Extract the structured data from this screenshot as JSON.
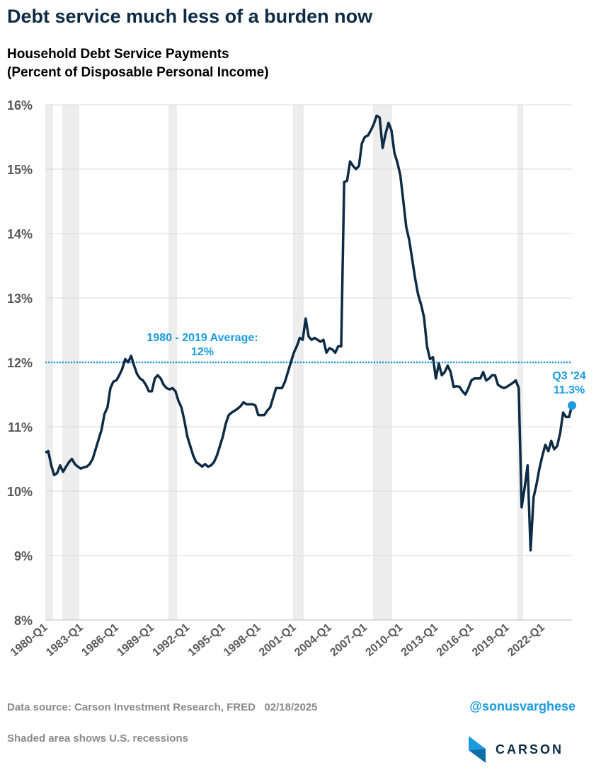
{
  "chart_data": {
    "type": "line",
    "headline": "Debt service much less of a burden now",
    "title": "Household Debt Service Payments",
    "subtitle": "(Percent of Disposable Personal Income)",
    "categories": [
      "1980-Q1",
      null,
      null,
      null,
      null,
      null,
      null,
      null,
      null,
      null,
      null,
      null,
      "1983-Q1",
      null,
      null,
      null,
      null,
      null,
      null,
      null,
      null,
      null,
      null,
      null,
      "1986-Q1",
      null,
      null,
      null,
      null,
      null,
      null,
      null,
      null,
      null,
      null,
      null,
      "1989-Q1",
      null,
      null,
      null,
      null,
      null,
      null,
      null,
      null,
      null,
      null,
      null,
      "1992-Q1",
      null,
      null,
      null,
      null,
      null,
      null,
      null,
      null,
      null,
      null,
      null,
      "1995-Q1",
      null,
      null,
      null,
      null,
      null,
      null,
      null,
      null,
      null,
      null,
      null,
      "1998-Q1",
      null,
      null,
      null,
      null,
      null,
      null,
      null,
      null,
      null,
      null,
      null,
      "2001-Q1",
      null,
      null,
      null,
      null,
      null,
      null,
      null,
      null,
      null,
      null,
      null,
      "2004-Q1",
      null,
      null,
      null,
      null,
      null,
      null,
      null,
      null,
      null,
      null,
      null,
      "2007-Q1",
      null,
      null,
      null,
      null,
      null,
      null,
      null,
      null,
      null,
      null,
      null,
      "2010-Q1",
      null,
      null,
      null,
      null,
      null,
      null,
      null,
      null,
      null,
      null,
      null,
      "2013-Q1",
      null,
      null,
      null,
      null,
      null,
      null,
      null,
      null,
      null,
      null,
      null,
      "2016-Q1",
      null,
      null,
      null,
      null,
      null,
      null,
      null,
      null,
      null,
      null,
      null,
      "2019-Q1",
      null,
      null,
      null,
      null,
      null,
      null,
      null,
      null,
      null,
      null,
      null,
      "2022-Q1",
      null,
      null,
      null,
      null,
      null,
      null,
      null,
      null,
      null,
      null
    ],
    "series": [
      {
        "name": "Household Debt Service Payments",
        "color": "#0d2b45",
        "values": [
          10.6,
          10.62,
          10.4,
          10.25,
          10.28,
          10.4,
          10.3,
          10.38,
          10.45,
          10.5,
          10.42,
          10.38,
          10.35,
          10.37,
          10.38,
          10.42,
          10.5,
          10.65,
          10.8,
          10.95,
          11.2,
          11.3,
          11.6,
          11.7,
          11.72,
          11.8,
          11.9,
          12.05,
          12.0,
          12.1,
          11.95,
          11.82,
          11.75,
          11.72,
          11.65,
          11.55,
          11.55,
          11.75,
          11.8,
          11.75,
          11.65,
          11.6,
          11.58,
          11.6,
          11.55,
          11.4,
          11.3,
          11.1,
          10.85,
          10.7,
          10.55,
          10.45,
          10.42,
          10.38,
          10.42,
          10.38,
          10.4,
          10.45,
          10.55,
          10.7,
          10.85,
          11.05,
          11.18,
          11.22,
          11.25,
          11.28,
          11.32,
          11.38,
          11.35,
          11.35,
          11.35,
          11.33,
          11.18,
          11.18,
          11.18,
          11.25,
          11.3,
          11.45,
          11.6,
          11.6,
          11.6,
          11.7,
          11.85,
          12.0,
          12.15,
          12.25,
          12.38,
          12.35,
          12.68,
          12.4,
          12.35,
          12.38,
          12.35,
          12.32,
          12.35,
          12.15,
          12.22,
          12.2,
          12.15,
          12.25,
          12.25,
          14.8,
          14.82,
          15.12,
          15.05,
          15.0,
          15.05,
          15.4,
          15.5,
          15.52,
          15.6,
          15.7,
          15.83,
          15.8,
          15.33,
          15.55,
          15.72,
          15.6,
          15.25,
          15.1,
          14.9,
          14.5,
          14.1,
          13.9,
          13.6,
          13.3,
          13.05,
          12.9,
          12.7,
          12.25,
          12.05,
          12.08,
          11.75,
          11.98,
          11.8,
          11.85,
          11.95,
          11.85,
          11.62,
          11.63,
          11.62,
          11.55,
          11.5,
          11.6,
          11.72,
          11.75,
          11.75,
          11.75,
          11.85,
          11.72,
          11.75,
          11.8,
          11.8,
          11.65,
          11.62,
          11.6,
          11.62,
          11.65,
          11.68,
          11.72,
          11.6,
          9.75,
          10.05,
          10.4,
          9.08,
          9.9,
          10.1,
          10.35,
          10.55,
          10.72,
          10.62,
          10.78,
          10.65,
          10.7,
          10.9,
          11.22,
          11.15,
          11.15,
          11.33
        ]
      }
    ],
    "ylim": [
      8,
      16
    ],
    "yticks": [
      {
        "value": 8,
        "label": "8%"
      },
      {
        "value": 9,
        "label": "9%"
      },
      {
        "value": 10,
        "label": "10%"
      },
      {
        "value": 11,
        "label": "11%"
      },
      {
        "value": 12,
        "label": "12%"
      },
      {
        "value": 13,
        "label": "13%"
      },
      {
        "value": 14,
        "label": "14%"
      },
      {
        "value": 15,
        "label": "15%"
      },
      {
        "value": 16,
        "label": "16%"
      }
    ],
    "grid": true,
    "reference_line": {
      "value": 12,
      "color": "#1a9be0",
      "label": [
        "1980 - 2019 Average:",
        "12%"
      ]
    },
    "last_point_label": [
      "Q3 '24",
      "11.3%"
    ],
    "source": "Data source: Carson Investment Research, FRED   02/18/2025",
    "handle": "@sonusvarghese",
    "note": "Shaded area shows U.S. recessions",
    "logo": "CARSON"
  }
}
